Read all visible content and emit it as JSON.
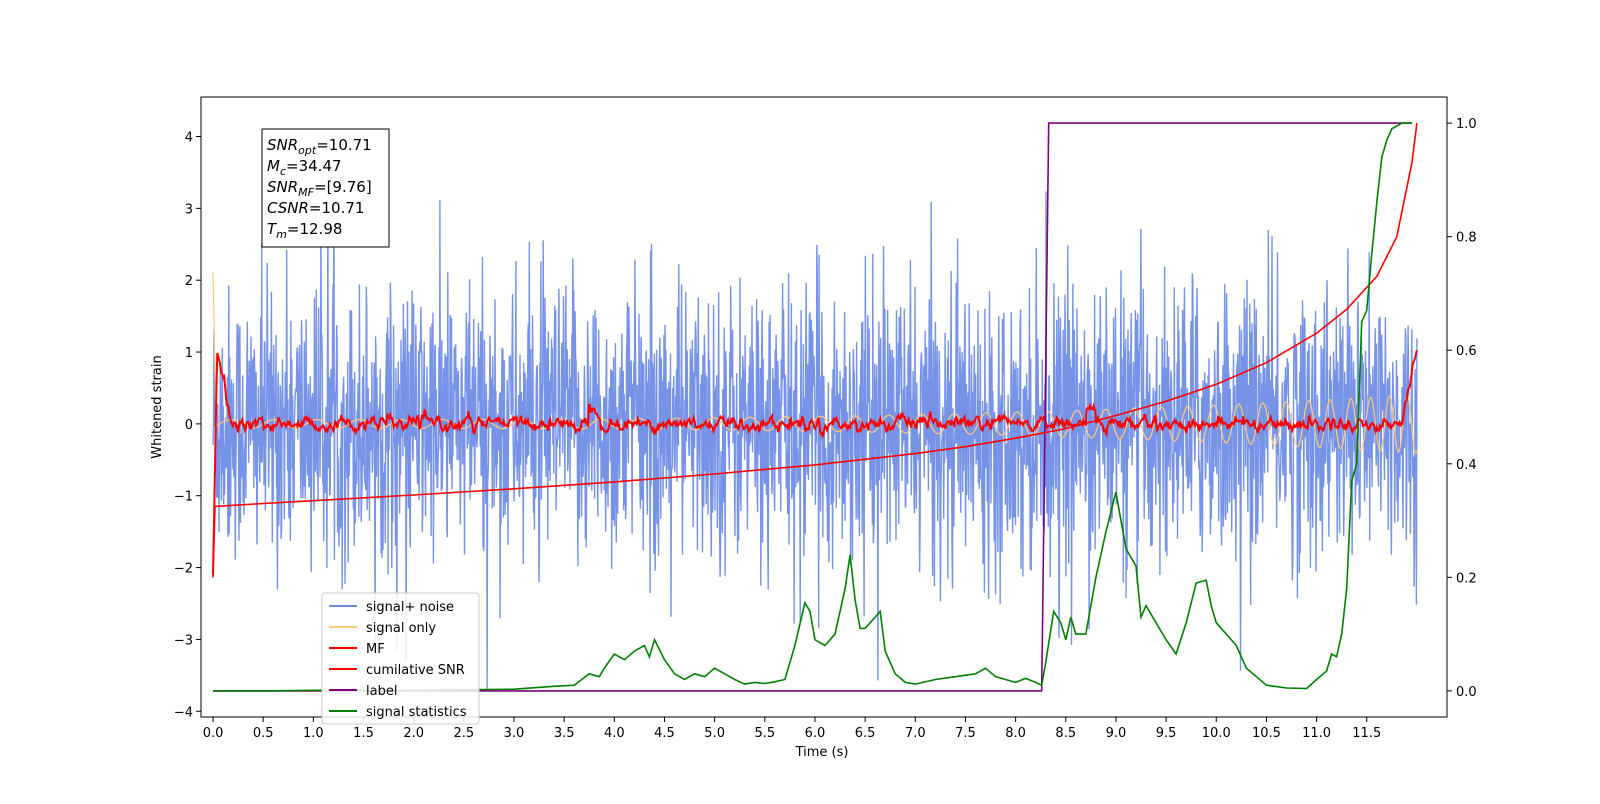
{
  "chart_data": {
    "type": "line",
    "xlabel": "Time (s)",
    "ylabel": "Whitened strain",
    "xlim": [
      -0.12,
      12.3
    ],
    "ylim_left": [
      -4.08,
      4.55
    ],
    "ylim_right": [
      -0.046,
      1.046
    ],
    "x_ticks": [
      "0.0",
      "0.5",
      "1.0",
      "1.5",
      "2.0",
      "2.5",
      "3.0",
      "3.5",
      "4.0",
      "4.5",
      "5.0",
      "5.5",
      "6.0",
      "6.5",
      "7.0",
      "7.5",
      "8.0",
      "8.5",
      "9.0",
      "9.5",
      "10.0",
      "10.5",
      "11.0",
      "11.5"
    ],
    "y_ticks_left": [
      "−4",
      "−3",
      "−2",
      "−1",
      "0",
      "1",
      "2",
      "3",
      "4"
    ],
    "y_ticks_right": [
      "0.0",
      "0.2",
      "0.4",
      "0.6",
      "0.8",
      "1.0"
    ],
    "annotation": {
      "line1": {
        "sym": "SNR",
        "sub": "opt",
        "val": "=10.71"
      },
      "line2": {
        "sym": "M",
        "sub": "c",
        "val": "=34.47"
      },
      "line3": {
        "sym": "SNR",
        "sub": "MF",
        "val": "=[9.76]"
      },
      "line4": {
        "sym": "CSNR",
        "sub": "",
        "val": "=10.71"
      },
      "line5": {
        "sym": "T",
        "sub": "m",
        "val": "=12.98"
      }
    },
    "legend": {
      "placement": "lower-left",
      "entries": [
        {
          "label": "signal+ noise",
          "color": "#6b8ae6"
        },
        {
          "label": "signal only",
          "color": "#ffc97a"
        },
        {
          "label": "MF",
          "color": "#ff0000"
        },
        {
          "label": "cumilative SNR",
          "color": "#ff0000"
        },
        {
          "label": "label",
          "color": "#800080"
        },
        {
          "label": "signal statistics",
          "color": "#008000"
        }
      ]
    },
    "series": [
      {
        "name": "label",
        "axis": "right",
        "color": "#800080",
        "x": [
          0.0,
          8.26,
          8.33,
          11.95
        ],
        "values": [
          0.0,
          0.0,
          1.0,
          1.0
        ]
      },
      {
        "name": "cumilative SNR",
        "axis": "right",
        "color": "#ff0000",
        "x": [
          0.0,
          0.02,
          0.5,
          1.0,
          2.0,
          3.0,
          4.0,
          5.0,
          6.0,
          7.0,
          7.5,
          8.0,
          8.5,
          9.0,
          9.5,
          10.0,
          10.5,
          11.0,
          11.3,
          11.6,
          11.8,
          11.95,
          12.0
        ],
        "values": [
          0.2,
          0.325,
          0.33,
          0.335,
          0.345,
          0.356,
          0.368,
          0.382,
          0.398,
          0.418,
          0.43,
          0.445,
          0.462,
          0.485,
          0.51,
          0.54,
          0.578,
          0.63,
          0.672,
          0.73,
          0.8,
          0.93,
          1.0
        ]
      },
      {
        "name": "signal statistics",
        "axis": "right",
        "color": "#008000",
        "x": [
          0.0,
          0.5,
          1.0,
          2.0,
          3.0,
          3.4,
          3.6,
          3.75,
          3.85,
          3.9,
          4.0,
          4.1,
          4.2,
          4.3,
          4.35,
          4.4,
          4.5,
          4.6,
          4.7,
          4.8,
          4.9,
          5.0,
          5.1,
          5.2,
          5.3,
          5.4,
          5.5,
          5.6,
          5.7,
          5.8,
          5.9,
          5.95,
          6.0,
          6.1,
          6.2,
          6.3,
          6.35,
          6.4,
          6.45,
          6.5,
          6.6,
          6.65,
          6.7,
          6.8,
          6.9,
          7.0,
          7.2,
          7.4,
          7.6,
          7.7,
          7.8,
          7.9,
          8.0,
          8.1,
          8.2,
          8.26,
          8.3,
          8.38,
          8.45,
          8.5,
          8.55,
          8.6,
          8.7,
          8.8,
          8.9,
          9.0,
          9.05,
          9.1,
          9.2,
          9.25,
          9.3,
          9.4,
          9.5,
          9.6,
          9.7,
          9.8,
          9.9,
          9.95,
          10.0,
          10.1,
          10.2,
          10.3,
          10.4,
          10.5,
          10.7,
          10.9,
          11.0,
          11.1,
          11.15,
          11.2,
          11.25,
          11.3,
          11.35,
          11.4,
          11.45,
          11.5,
          11.55,
          11.6,
          11.65,
          11.7,
          11.75,
          11.8,
          11.85,
          11.9,
          11.95
        ],
        "values": [
          0.0,
          0.0,
          0.001,
          0.001,
          0.003,
          0.008,
          0.01,
          0.03,
          0.025,
          0.04,
          0.065,
          0.055,
          0.07,
          0.08,
          0.06,
          0.09,
          0.055,
          0.03,
          0.02,
          0.03,
          0.025,
          0.04,
          0.03,
          0.02,
          0.012,
          0.015,
          0.013,
          0.016,
          0.02,
          0.08,
          0.155,
          0.14,
          0.09,
          0.08,
          0.1,
          0.18,
          0.24,
          0.16,
          0.11,
          0.11,
          0.13,
          0.14,
          0.07,
          0.03,
          0.015,
          0.012,
          0.02,
          0.025,
          0.03,
          0.04,
          0.025,
          0.02,
          0.015,
          0.022,
          0.015,
          0.01,
          0.05,
          0.14,
          0.12,
          0.09,
          0.13,
          0.1,
          0.1,
          0.2,
          0.28,
          0.35,
          0.3,
          0.25,
          0.22,
          0.13,
          0.15,
          0.12,
          0.09,
          0.065,
          0.12,
          0.19,
          0.195,
          0.15,
          0.12,
          0.1,
          0.08,
          0.04,
          0.025,
          0.01,
          0.005,
          0.004,
          0.02,
          0.035,
          0.065,
          0.06,
          0.1,
          0.18,
          0.37,
          0.4,
          0.65,
          0.67,
          0.77,
          0.86,
          0.94,
          0.97,
          0.99,
          0.995,
          1.0,
          1.0,
          1.0
        ]
      }
    ],
    "noisy_series_summary": [
      {
        "name": "signal+ noise",
        "axis": "left",
        "x_range": [
          0.0,
          12.0
        ],
        "approx_range": [
          -3.7,
          4.2
        ],
        "note": "dense whitened strain noise"
      },
      {
        "name": "signal only",
        "axis": "left",
        "x_range": [
          0.0,
          12.0
        ],
        "approx_range": [
          -1.0,
          2.1
        ],
        "note": "chirp with growing amplitude near the end"
      },
      {
        "name": "MF",
        "axis": "left",
        "x_range": [
          0.0,
          12.0
        ],
        "approx_range": [
          -2.1,
          1.0
        ],
        "note": "matched filter output oscillating around 0"
      }
    ]
  }
}
